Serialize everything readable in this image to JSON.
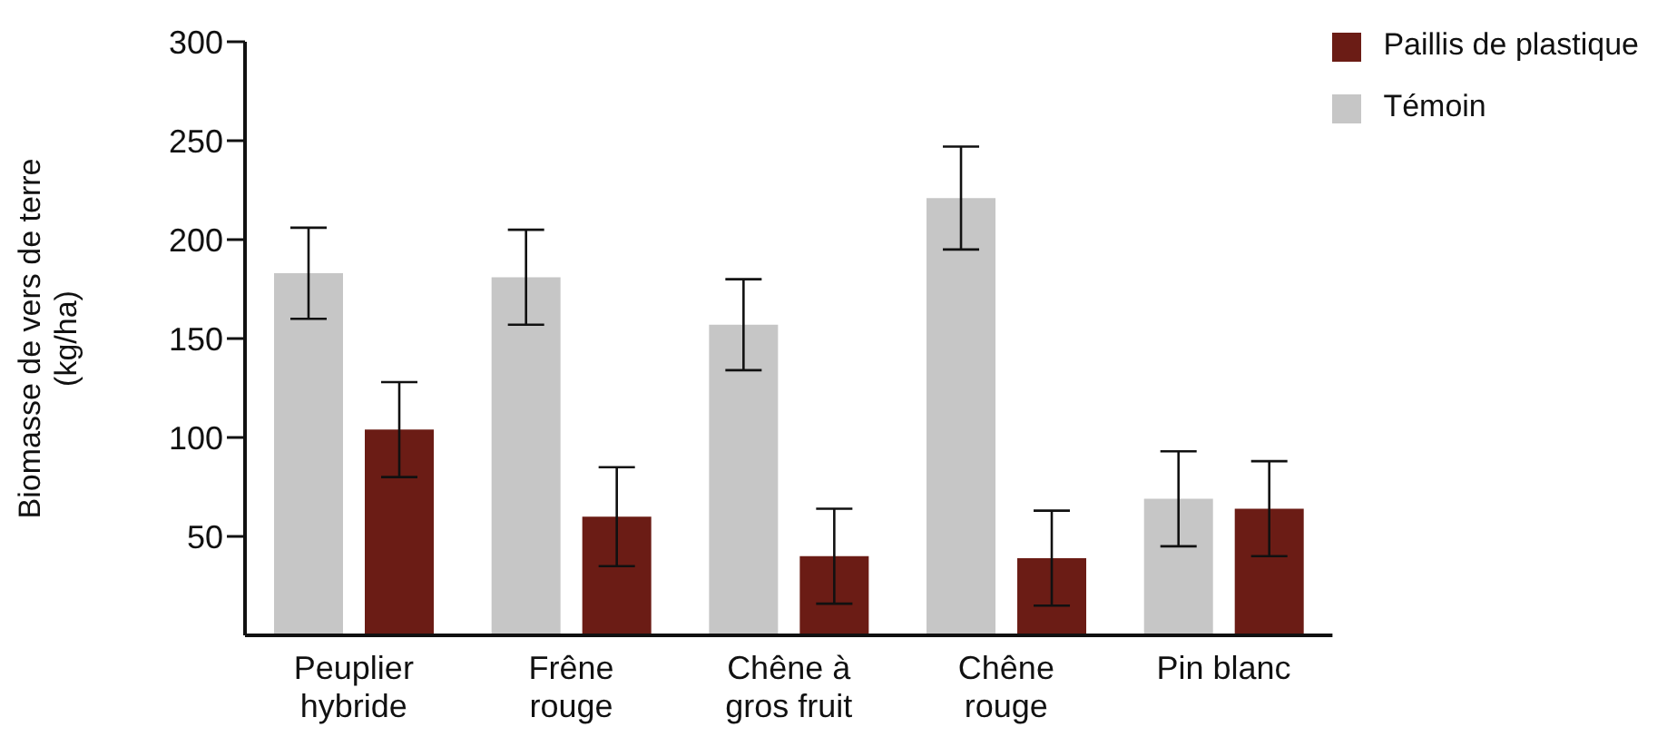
{
  "chart_data": {
    "type": "bar",
    "ylabel": "Biomasse de vers de terre (kg/ha)",
    "categories": [
      "Peuplier hybride",
      "Frêne rouge",
      "Chêne à gros fruit",
      "Chêne rouge",
      "Pin blanc"
    ],
    "series": [
      {
        "name": "Témoin",
        "color": "#c6c6c6",
        "values": [
          183,
          181,
          157,
          221,
          69
        ],
        "errors": [
          23,
          24,
          23,
          26,
          24
        ]
      },
      {
        "name": "Paillis de plastique",
        "color": "#6b1c15",
        "values": [
          104,
          60,
          40,
          39,
          64
        ],
        "errors": [
          24,
          25,
          24,
          24,
          24
        ]
      }
    ],
    "ylim": [
      0,
      300
    ],
    "yticks": [
      50,
      100,
      150,
      200,
      250,
      300
    ],
    "grid": false,
    "legend": "top right"
  }
}
